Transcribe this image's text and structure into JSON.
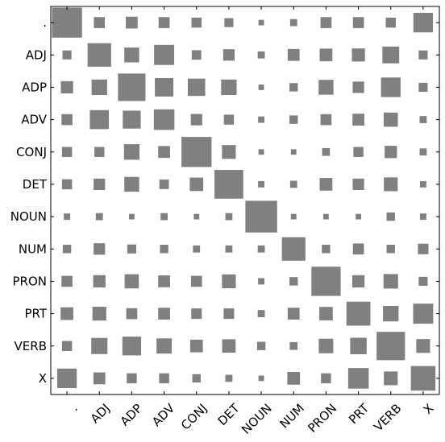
{
  "chart_data": {
    "type": "heatmap",
    "title": "",
    "xlabel": "",
    "ylabel": "",
    "encoding": "square-size",
    "grid": false,
    "color": "#808080",
    "categories": [
      ".",
      "ADJ",
      "ADP",
      "ADV",
      "CONJ",
      "DET",
      "NOUN",
      "NUM",
      "PRON",
      "PRT",
      "VERB",
      "X"
    ],
    "values": [
      [
        0.9,
        0.12,
        0.14,
        0.12,
        0.1,
        0.08,
        0.03,
        0.05,
        0.12,
        0.12,
        0.1,
        0.38
      ],
      [
        0.08,
        0.55,
        0.22,
        0.4,
        0.09,
        0.13,
        0.05,
        0.14,
        0.16,
        0.17,
        0.28,
        0.08
      ],
      [
        0.15,
        0.24,
        0.75,
        0.34,
        0.3,
        0.24,
        0.03,
        0.07,
        0.22,
        0.13,
        0.38,
        0.08
      ],
      [
        0.12,
        0.36,
        0.32,
        0.42,
        0.13,
        0.1,
        0.04,
        0.07,
        0.12,
        0.14,
        0.2,
        0.05
      ],
      [
        0.1,
        0.1,
        0.24,
        0.14,
        0.9,
        0.19,
        0.03,
        0.03,
        0.06,
        0.1,
        0.15,
        0.05
      ],
      [
        0.1,
        0.13,
        0.22,
        0.09,
        0.18,
        0.82,
        0.04,
        0.05,
        0.16,
        0.13,
        0.19,
        0.04
      ],
      [
        0.04,
        0.05,
        0.03,
        0.05,
        0.03,
        0.05,
        1.0,
        0.03,
        0.03,
        0.03,
        0.07,
        0.04
      ],
      [
        0.07,
        0.13,
        0.08,
        0.07,
        0.05,
        0.05,
        0.05,
        0.55,
        0.07,
        0.12,
        0.07,
        0.11
      ],
      [
        0.12,
        0.15,
        0.2,
        0.14,
        0.12,
        0.19,
        0.04,
        0.07,
        0.85,
        0.15,
        0.21,
        0.08
      ],
      [
        0.16,
        0.19,
        0.12,
        0.14,
        0.11,
        0.11,
        0.05,
        0.14,
        0.18,
        0.57,
        0.24,
        0.4
      ],
      [
        0.1,
        0.26,
        0.35,
        0.23,
        0.16,
        0.18,
        0.07,
        0.06,
        0.21,
        0.27,
        0.8,
        0.19
      ],
      [
        0.38,
        0.14,
        0.1,
        0.1,
        0.07,
        0.05,
        0.03,
        0.16,
        0.1,
        0.42,
        0.19,
        0.6
      ]
    ]
  }
}
